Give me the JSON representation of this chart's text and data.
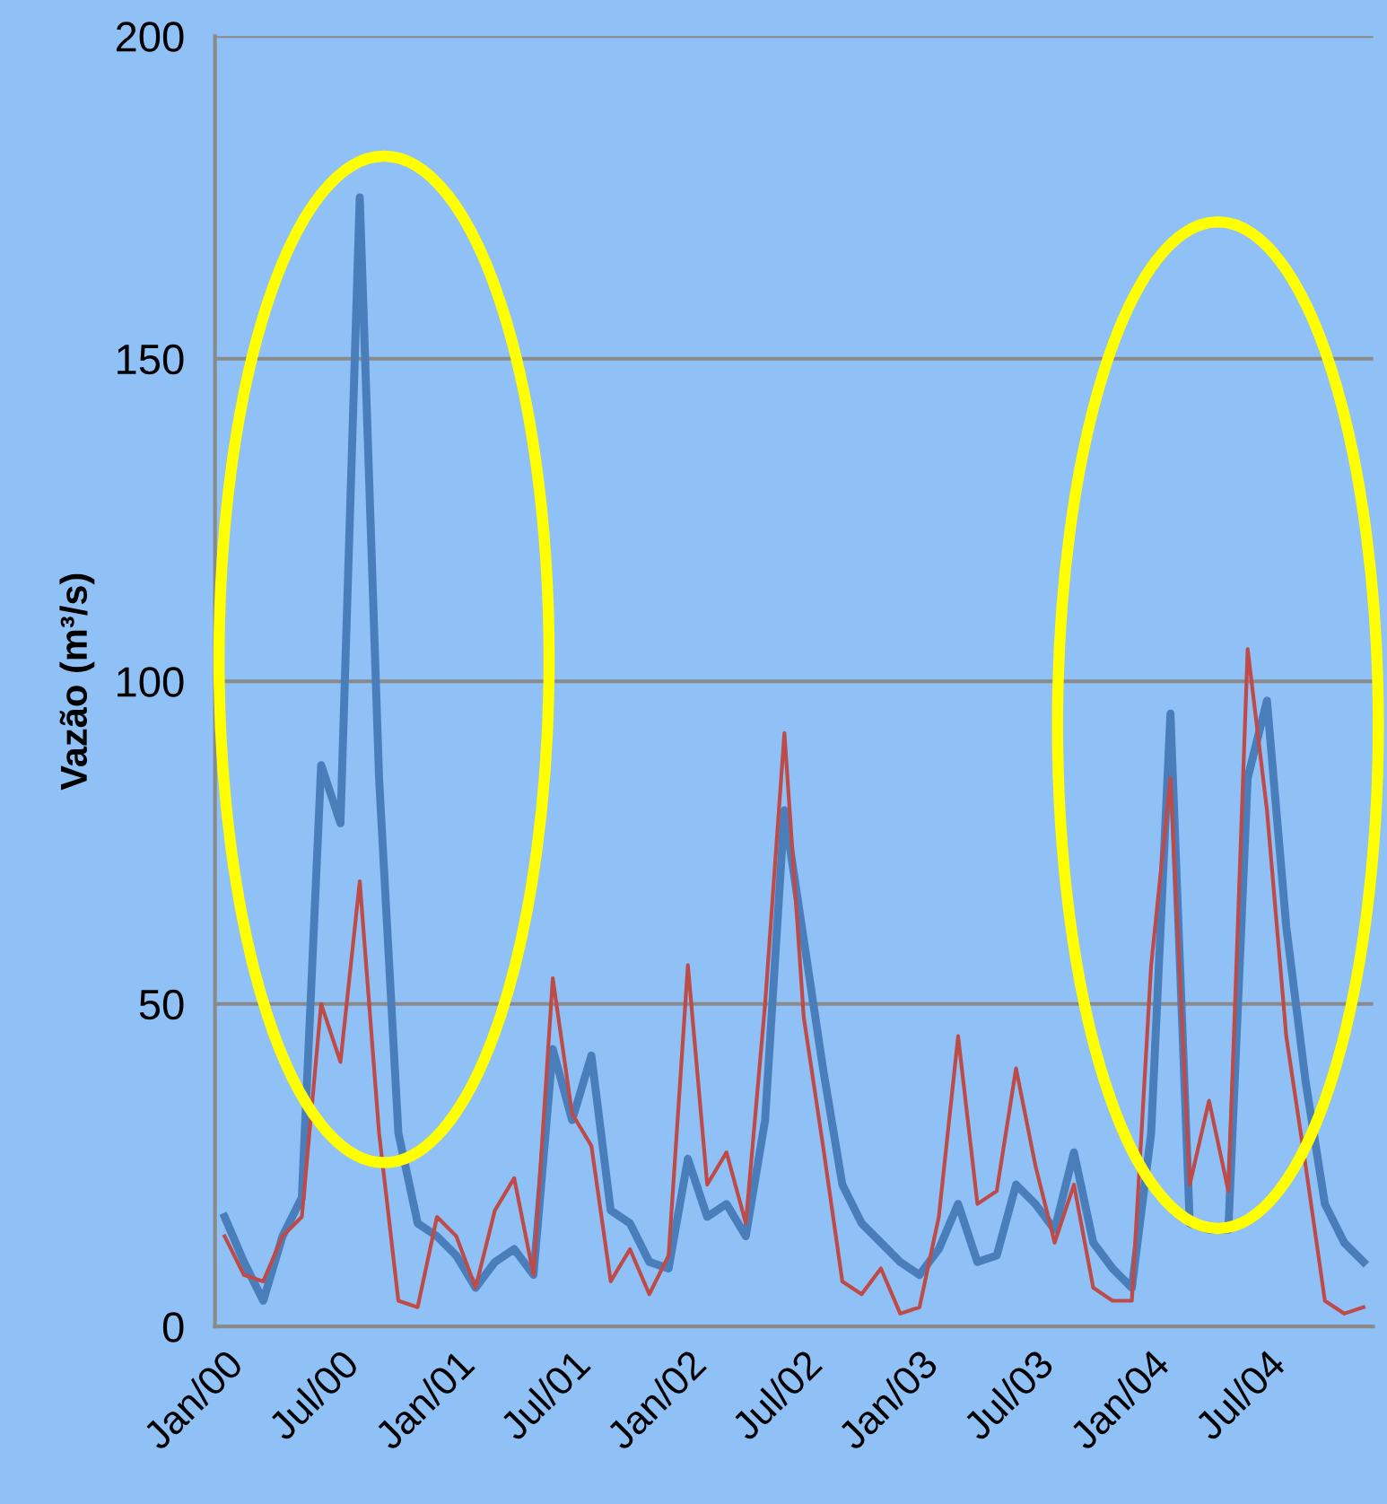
{
  "chart_data": {
    "type": "line",
    "ylabel": "Vazão (m³/s)",
    "categories": [
      "Jan/00",
      null,
      null,
      null,
      null,
      null,
      "Jul/00",
      null,
      null,
      null,
      null,
      null,
      "Jan/01",
      null,
      null,
      null,
      null,
      null,
      "Jul/01",
      null,
      null,
      null,
      null,
      null,
      "Jan/02",
      null,
      null,
      null,
      null,
      null,
      "Jul/02",
      null,
      null,
      null,
      null,
      null,
      "Jan/03",
      null,
      null,
      null,
      null,
      null,
      "Jul/03",
      null,
      null,
      null,
      null,
      null,
      "Jan/04",
      null,
      null,
      null,
      null,
      null,
      "Jul/04",
      null,
      null,
      null,
      null,
      null
    ],
    "series": [
      {
        "color": "#4a7ebb",
        "values": [
          17,
          10,
          4,
          14,
          20,
          87,
          78,
          175,
          85,
          30,
          16,
          14,
          11,
          6,
          10,
          12,
          8,
          43,
          32,
          42,
          18,
          16,
          10,
          9,
          26,
          17,
          19,
          14,
          32,
          80,
          60,
          40,
          22,
          16,
          13,
          10,
          8,
          12,
          19,
          10,
          11,
          22,
          19,
          15,
          27,
          13,
          9,
          6,
          30,
          95,
          16,
          15,
          15,
          85,
          97,
          62,
          38,
          19,
          13,
          10
        ]
      },
      {
        "color": "#be4b48",
        "values": [
          14,
          8,
          7,
          14,
          17,
          50,
          41,
          69,
          30,
          4,
          3,
          17,
          14,
          6,
          18,
          23,
          8,
          54,
          33,
          28,
          7,
          12,
          5,
          11,
          56,
          22,
          27,
          16,
          50,
          92,
          48,
          28,
          7,
          5,
          9,
          2,
          3,
          17,
          45,
          19,
          21,
          40,
          25,
          13,
          22,
          6,
          4,
          4,
          56,
          85,
          22,
          35,
          21,
          105,
          80,
          45,
          25,
          4,
          2,
          3
        ]
      }
    ],
    "ylim": [
      0,
      200
    ],
    "yticks": [
      0,
      50,
      100,
      150,
      200
    ],
    "grid": "y",
    "marker": "none",
    "line_style": "solid"
  }
}
